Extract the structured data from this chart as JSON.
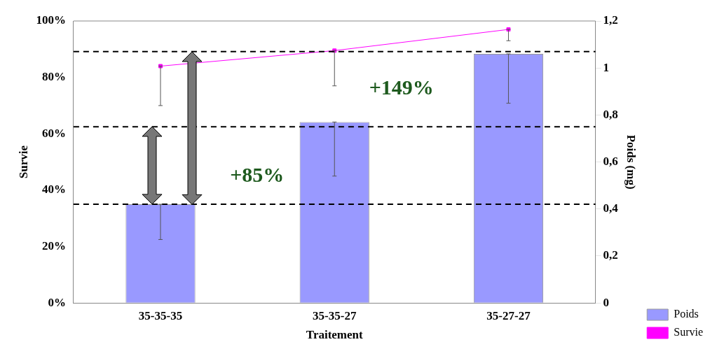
{
  "chart_data": {
    "type": "bar",
    "xlabel": "Traitement",
    "ylabel": "Survie",
    "y2label": "Poids (mg)",
    "categories": [
      "35-35-35",
      "35-35-27",
      "35-27-27"
    ],
    "series": [
      {
        "name": "Poids",
        "axis": "y2",
        "color": "#9999ff",
        "values": [
          0.42,
          0.77,
          1.06
        ],
        "errors": [
          [
            0.27,
            0.42
          ],
          [
            0.54,
            0.77
          ],
          [
            0.85,
            1.06
          ]
        ]
      },
      {
        "name": "Survie",
        "type": "line",
        "color": "#ff00ff",
        "marker": "square",
        "values": [
          84,
          89.5,
          97
        ],
        "errors": [
          [
            70,
            84
          ],
          [
            77,
            89.5
          ],
          [
            93,
            97
          ]
        ]
      }
    ],
    "ylim": [
      0,
      100
    ],
    "yticks": [
      {
        "value": 0,
        "label": "0%"
      },
      {
        "value": 20,
        "label": "20%"
      },
      {
        "value": 40,
        "label": "40%"
      },
      {
        "value": 60,
        "label": "60%"
      },
      {
        "value": 80,
        "label": "80%"
      },
      {
        "value": 100,
        "label": "100%"
      }
    ],
    "y2lim": [
      0,
      1.2
    ],
    "y2ticks": [
      0,
      {
        "value": 0.2,
        "label": "0,2"
      },
      {
        "value": 0.4,
        "label": "0,4"
      },
      {
        "value": 0.6,
        "label": "0,6"
      },
      {
        "value": 0.8,
        "label": "0,8"
      },
      1,
      {
        "value": 1.2,
        "label": "1,2"
      }
    ],
    "ref_lines": [
      {
        "axis": "y2",
        "value": 0.42,
        "line_style": "dashed",
        "color": "#000000"
      },
      {
        "axis": "y2",
        "value": 0.75,
        "line_style": "dashed",
        "color": "#000000"
      },
      {
        "axis": "y2",
        "value": 1.07,
        "line_style": "dashed",
        "color": "#000000"
      }
    ],
    "annotations": [
      "+85%",
      "+149%"
    ],
    "legend": "bottom right",
    "grid": false
  }
}
